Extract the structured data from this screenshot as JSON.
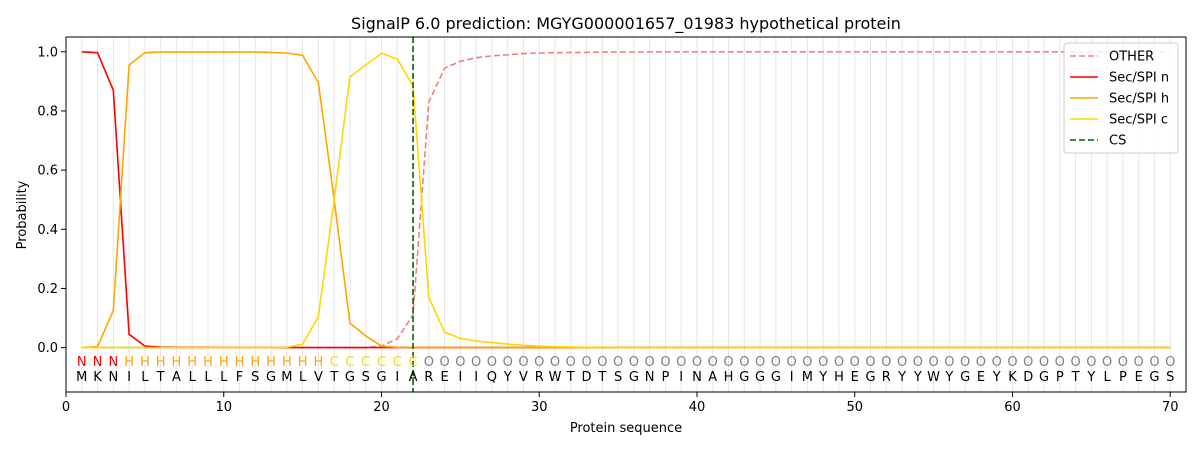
{
  "chart_data": {
    "type": "line",
    "title": "SignalP 6.0 prediction: MGYG000001657_01983 hypothetical protein",
    "xlabel": "Protein sequence",
    "ylabel": "Probability",
    "xlim": [
      0,
      71
    ],
    "ylim": [
      -0.15,
      1.05
    ],
    "x_ticks": [
      0,
      10,
      20,
      30,
      40,
      50,
      60,
      70
    ],
    "y_ticks": [
      0.0,
      0.2,
      0.4,
      0.6,
      0.8,
      1.0
    ],
    "y_tick_labels": [
      "0.0",
      "0.2",
      "0.4",
      "0.6",
      "0.8",
      "1.0"
    ],
    "grid": "vertical lines at each residue position",
    "legend_position": "top-right",
    "sequence": [
      "M",
      "K",
      "N",
      "I",
      "L",
      "T",
      "A",
      "L",
      "L",
      "L",
      "F",
      "S",
      "G",
      "M",
      "L",
      "V",
      "T",
      "G",
      "S",
      "G",
      "I",
      "A",
      "R",
      "E",
      "I",
      "I",
      "Q",
      "Y",
      "V",
      "R",
      "W",
      "T",
      "D",
      "T",
      "S",
      "G",
      "N",
      "P",
      "I",
      "N",
      "A",
      "H",
      "G",
      "G",
      "G",
      "I",
      "M",
      "Y",
      "H",
      "E",
      "G",
      "R",
      "Y",
      "Y",
      "W",
      "Y",
      "G",
      "E",
      "Y",
      "K",
      "D",
      "G",
      "P",
      "T",
      "Y",
      "L",
      "P",
      "E",
      "G",
      "S"
    ],
    "labels": [
      "N",
      "N",
      "N",
      "H",
      "H",
      "H",
      "H",
      "H",
      "H",
      "H",
      "H",
      "H",
      "H",
      "H",
      "H",
      "H",
      "C",
      "C",
      "C",
      "C",
      "C",
      "C",
      "O",
      "O",
      "O",
      "O",
      "O",
      "O",
      "O",
      "O",
      "O",
      "O",
      "O",
      "O",
      "O",
      "O",
      "O",
      "O",
      "O",
      "O",
      "O",
      "O",
      "O",
      "O",
      "O",
      "O",
      "O",
      "O",
      "O",
      "O",
      "O",
      "O",
      "O",
      "O",
      "O",
      "O",
      "O",
      "O",
      "O",
      "O",
      "O",
      "O",
      "O",
      "O",
      "O",
      "O",
      "O",
      "O",
      "O",
      "O"
    ],
    "label_colors": {
      "N": "#ff0000",
      "H": "#ffa500",
      "C": "#ffd700",
      "O": "#808080"
    },
    "cleavage_site": 22,
    "series": [
      {
        "name": "OTHER",
        "color": "#f08080",
        "dash": true,
        "values": [
          0,
          0,
          0,
          0,
          0,
          0,
          0,
          0,
          0,
          0,
          0,
          0,
          0,
          0,
          0,
          0,
          0,
          0,
          0,
          0.005,
          0.03,
          0.11,
          0.83,
          0.945,
          0.968,
          0.98,
          0.986,
          0.99,
          0.994,
          0.996,
          0.997,
          0.998,
          0.998,
          0.999,
          0.999,
          0.999,
          1,
          1,
          1,
          1,
          1,
          1,
          1,
          1,
          1,
          1,
          1,
          1,
          1,
          1,
          1,
          1,
          1,
          1,
          1,
          1,
          1,
          1,
          1,
          1,
          1,
          1,
          1,
          1,
          1,
          1,
          1,
          1,
          1,
          1
        ]
      },
      {
        "name": "Sec/SPI n",
        "color": "#ff0000",
        "dash": false,
        "values": [
          1.0,
          0.997,
          0.87,
          0.045,
          0.005,
          0.002,
          0.001,
          0.001,
          0.001,
          0,
          0,
          0,
          0,
          0,
          0,
          0,
          0,
          0,
          0,
          0,
          0,
          0,
          0,
          0,
          0,
          0,
          0,
          0,
          0,
          0,
          0,
          0,
          0,
          0,
          0,
          0,
          0,
          0,
          0,
          0,
          0,
          0,
          0,
          0,
          0,
          0,
          0,
          0,
          0,
          0,
          0,
          0,
          0,
          0,
          0,
          0,
          0,
          0,
          0,
          0,
          0,
          0,
          0,
          0,
          0,
          0,
          0,
          0,
          0,
          0
        ]
      },
      {
        "name": "Sec/SPI h",
        "color": "#ffa500",
        "dash": false,
        "values": [
          0,
          0.003,
          0.125,
          0.955,
          0.997,
          0.999,
          0.999,
          0.999,
          0.999,
          0.999,
          0.999,
          0.999,
          0.998,
          0.996,
          0.988,
          0.895,
          0.5,
          0.083,
          0.04,
          0.005,
          0.001,
          0,
          0,
          0,
          0,
          0,
          0,
          0,
          0,
          0,
          0,
          0,
          0,
          0,
          0,
          0,
          0,
          0,
          0,
          0,
          0,
          0,
          0,
          0,
          0,
          0,
          0,
          0,
          0,
          0,
          0,
          0,
          0,
          0,
          0,
          0,
          0,
          0,
          0,
          0,
          0,
          0,
          0,
          0,
          0,
          0,
          0,
          0,
          0,
          0
        ]
      },
      {
        "name": "Sec/SPI c",
        "color": "#ffd700",
        "dash": false,
        "values": [
          0,
          0,
          0,
          0,
          0,
          0,
          0,
          0,
          0,
          0,
          0,
          0,
          0,
          0.001,
          0.012,
          0.105,
          0.5,
          0.915,
          0.955,
          0.995,
          0.975,
          0.885,
          0.17,
          0.052,
          0.032,
          0.022,
          0.017,
          0.012,
          0.008,
          0.005,
          0.003,
          0.002,
          0.001,
          0.001,
          0,
          0,
          0,
          0,
          0,
          0,
          0,
          0,
          0,
          0,
          0,
          0,
          0,
          0,
          0,
          0,
          0,
          0,
          0,
          0,
          0,
          0,
          0,
          0,
          0,
          0,
          0,
          0,
          0,
          0,
          0,
          0,
          0,
          0,
          0,
          0
        ]
      }
    ],
    "legend": [
      {
        "name": "OTHER",
        "color": "#f08080",
        "dash": true
      },
      {
        "name": "Sec/SPI n",
        "color": "#ff0000",
        "dash": false
      },
      {
        "name": "Sec/SPI h",
        "color": "#ffa500",
        "dash": false
      },
      {
        "name": "Sec/SPI c",
        "color": "#ffd700",
        "dash": false
      },
      {
        "name": "CS",
        "color": "#006400",
        "dash": true
      }
    ]
  }
}
